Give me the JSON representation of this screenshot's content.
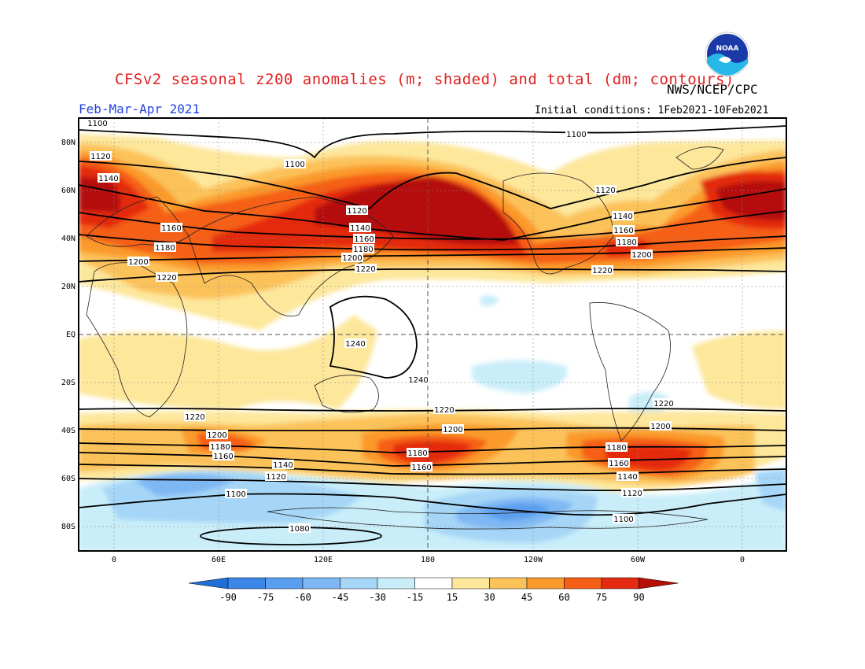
{
  "header": {
    "title": "CFSv2 seasonal z200 anomalies (m; shaded) and total (dm; contours)",
    "agency": "NWS/NCEP/CPC",
    "season": "Feb-Mar-Apr 2021",
    "initial_conditions": "Initial conditions: 1Feb2021-10Feb2021",
    "logo_text": "NOAA"
  },
  "axes": {
    "lat_labels": [
      "80N",
      "60N",
      "40N",
      "20N",
      "EQ",
      "20S",
      "40S",
      "60S",
      "80S"
    ],
    "lon_labels": [
      "0",
      "60E",
      "120E",
      "180",
      "120W",
      "60W",
      "0"
    ]
  },
  "colorbar": {
    "levels": [
      "-90",
      "-75",
      "-60",
      "-45",
      "-30",
      "-15",
      "15",
      "30",
      "45",
      "60",
      "75",
      "90"
    ],
    "colors": [
      "#1f6fd6",
      "#3b86e6",
      "#5a9fef",
      "#7eb8f4",
      "#a6d6f7",
      "#c9eef9",
      "#ffffff",
      "#fde79b",
      "#fcc25a",
      "#fb9a2c",
      "#f55f16",
      "#e42a10",
      "#b50f07"
    ]
  },
  "contour_labels": [
    "1100",
    "1100",
    "1100",
    "1120",
    "1140",
    "1160",
    "1180",
    "1200",
    "1220",
    "1120",
    "1140",
    "1160",
    "1180",
    "1200",
    "1220",
    "1120",
    "1140",
    "1160",
    "1180",
    "1200",
    "1220",
    "1240",
    "1240",
    "1220",
    "1200",
    "1180",
    "1160",
    "1140",
    "1120",
    "1100",
    "1080",
    "1220",
    "1200",
    "1180",
    "1160",
    "1220",
    "1200",
    "1180",
    "1160",
    "1140",
    "1120",
    "1100"
  ]
}
